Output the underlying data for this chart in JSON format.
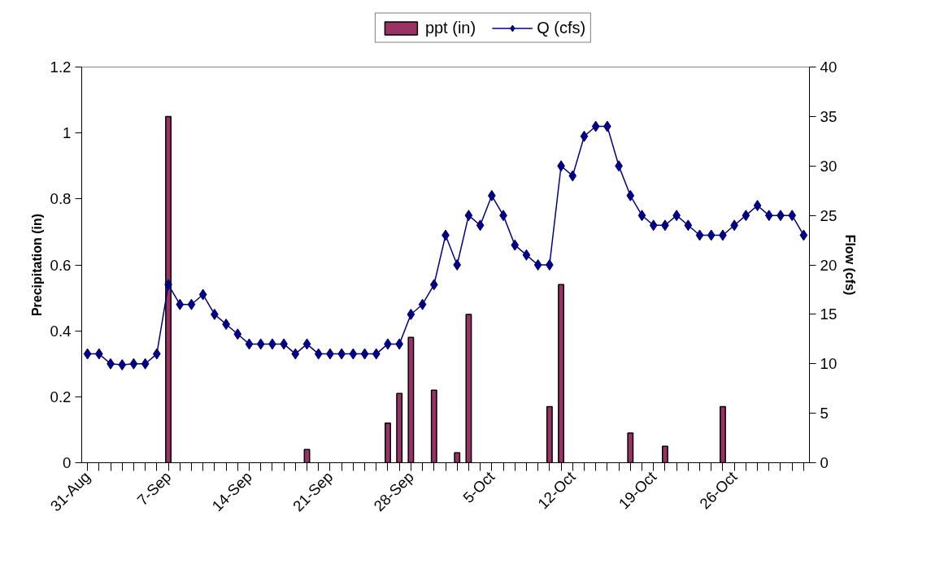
{
  "chart_data": {
    "type": "line",
    "ylabel": "Precipitation (in)",
    "y2label": "Flow (cfs)",
    "categories": [
      "31-Aug",
      null,
      null,
      null,
      null,
      null,
      null,
      "7-Sep",
      null,
      null,
      null,
      null,
      null,
      null,
      "14-Sep",
      null,
      null,
      null,
      null,
      null,
      null,
      "21-Sep",
      null,
      null,
      null,
      null,
      null,
      null,
      "28-Sep",
      null,
      null,
      null,
      null,
      null,
      null,
      "5-Oct",
      null,
      null,
      null,
      null,
      null,
      null,
      "12-Oct",
      null,
      null,
      null,
      null,
      null,
      null,
      "19-Oct",
      null,
      null,
      null,
      null,
      null,
      null,
      "26-Oct",
      null,
      null,
      null,
      null,
      null,
      null
    ],
    "ylim": [
      0,
      1.2
    ],
    "yticks": [
      0,
      0.2,
      0.4,
      0.6,
      0.8,
      1,
      1.2
    ],
    "y2lim": [
      0,
      40
    ],
    "y2ticks": [
      0,
      5,
      10,
      15,
      20,
      25,
      30,
      35,
      40
    ],
    "legend": "top",
    "marker": "diamond",
    "line_style": "solid",
    "series": [
      {
        "name": "ppt (in)",
        "type": "bar",
        "axis": "y",
        "color": "#993366",
        "values": [
          null,
          null,
          null,
          null,
          null,
          null,
          null,
          1.05,
          null,
          null,
          null,
          null,
          null,
          null,
          null,
          null,
          null,
          null,
          null,
          0.04,
          null,
          null,
          null,
          null,
          null,
          null,
          0.12,
          0.21,
          0.38,
          null,
          0.22,
          null,
          0.03,
          0.45,
          null,
          null,
          null,
          null,
          null,
          null,
          0.17,
          0.54,
          null,
          null,
          null,
          null,
          null,
          0.09,
          null,
          null,
          0.05,
          null,
          null,
          null,
          null,
          0.17,
          null,
          null,
          null,
          null,
          null,
          null,
          null
        ]
      },
      {
        "name": "Q (cfs)",
        "axis": "y2",
        "color": "#000080",
        "values": [
          11,
          11,
          10,
          9.9,
          10,
          10,
          11,
          18,
          16,
          16,
          17,
          15,
          14,
          13,
          12,
          12,
          12,
          12,
          11,
          12,
          11,
          11,
          11,
          11,
          11,
          11,
          12,
          12,
          15,
          16,
          18,
          23,
          20,
          25,
          24,
          27,
          25,
          22,
          21,
          20,
          20,
          30,
          29,
          33,
          34,
          34,
          30,
          27,
          25,
          24,
          24,
          25,
          24,
          23,
          23,
          23,
          24,
          25,
          26,
          25,
          25,
          25,
          23
        ]
      }
    ]
  }
}
